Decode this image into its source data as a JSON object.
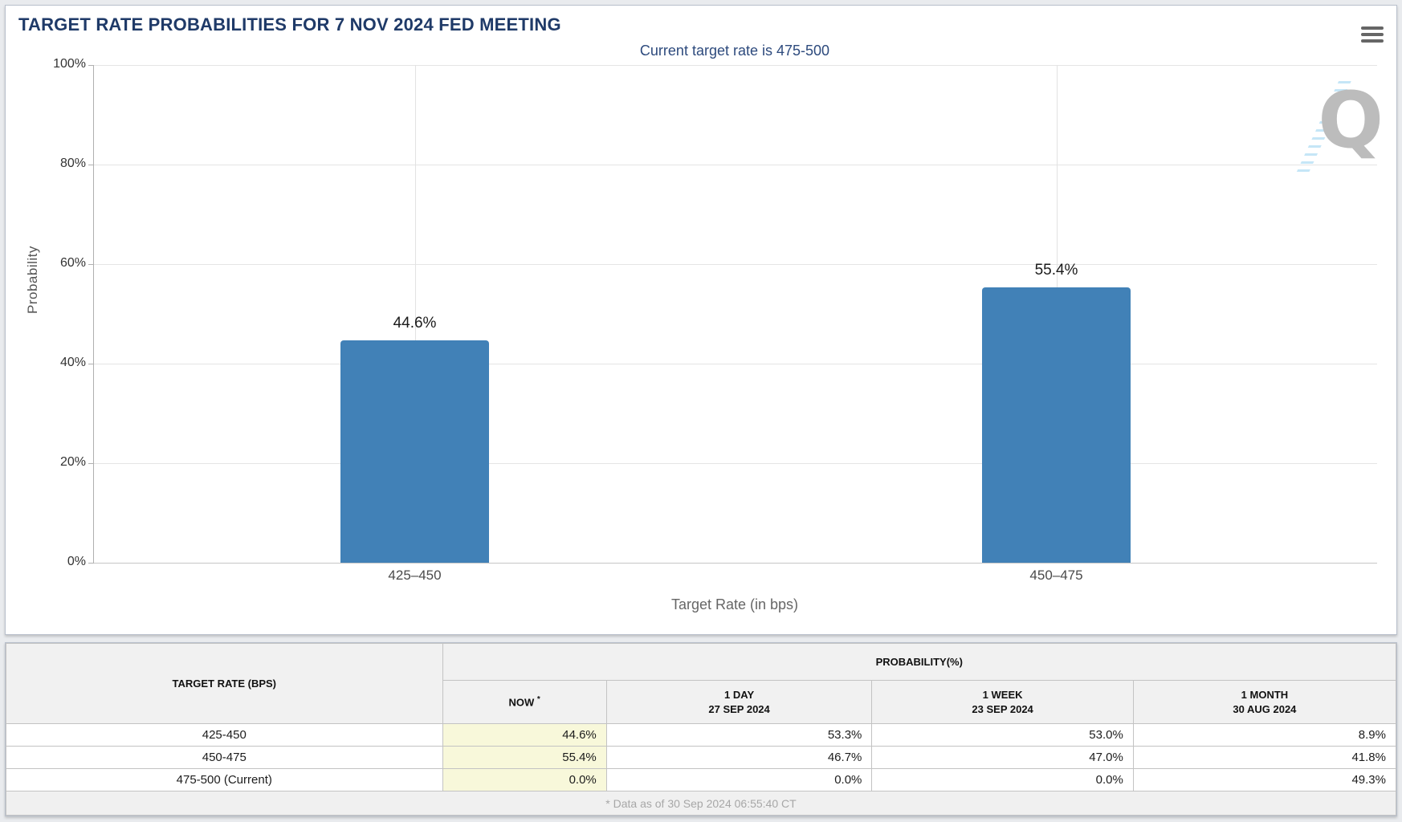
{
  "header": {
    "title": "TARGET RATE PROBABILITIES FOR 7 NOV 2024 FED MEETING",
    "menu_icon": "hamburger-icon"
  },
  "chart_data": {
    "type": "bar",
    "title": "Current target rate is 475-500",
    "categories": [
      "425–450",
      "450–475"
    ],
    "values": [
      44.6,
      55.4
    ],
    "value_labels": [
      "44.6%",
      "55.4%"
    ],
    "xlabel": "Target Rate (in bps)",
    "ylabel": "Probability",
    "ylim": [
      0,
      100
    ],
    "yticks": [
      0,
      20,
      40,
      60,
      80,
      100
    ],
    "ytick_labels": [
      "0%",
      "20%",
      "40%",
      "60%",
      "80%",
      "100%"
    ],
    "grid": true,
    "legend": "none",
    "bar_color": "#4181b7",
    "watermark_letter": "Q"
  },
  "table": {
    "rate_header": "TARGET RATE (BPS)",
    "group_header": "PROBABILITY(%)",
    "now_label": "NOW",
    "now_asterisk": "*",
    "day_label": "1 DAY",
    "day_date": "27 SEP 2024",
    "week_label": "1 WEEK",
    "week_date": "23 SEP 2024",
    "month_label": "1 MONTH",
    "month_date": "30 AUG 2024",
    "rows": [
      {
        "rate": "425-450",
        "now": "44.6%",
        "day": "53.3%",
        "week": "53.0%",
        "month": "8.9%"
      },
      {
        "rate": "450-475",
        "now": "55.4%",
        "day": "46.7%",
        "week": "47.0%",
        "month": "41.8%"
      },
      {
        "rate": "475-500 (Current)",
        "now": "0.0%",
        "day": "0.0%",
        "week": "0.0%",
        "month": "49.3%"
      }
    ],
    "footnote": "* Data as of 30 Sep 2024 06:55:40 CT"
  },
  "colors": {
    "bar": "#4181b7",
    "title_navy": "#1f3a68",
    "subtitle_navy": "#2d4a7d",
    "now_highlight": "#f8f8da",
    "page_background": "#e9ebee"
  }
}
